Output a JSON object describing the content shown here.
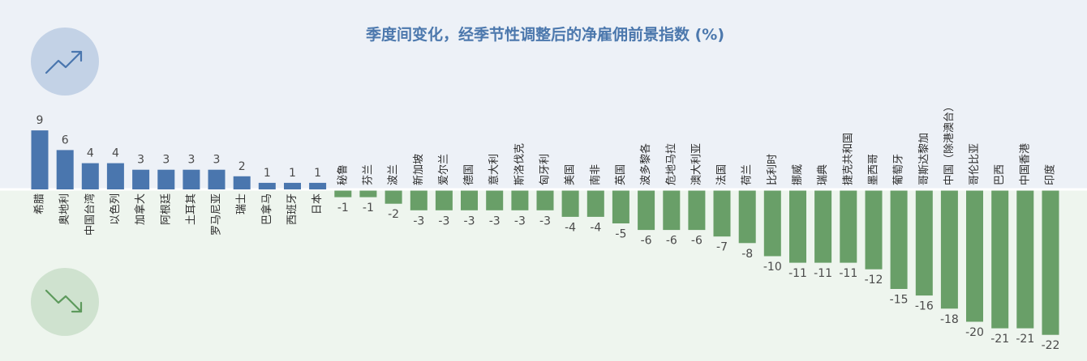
{
  "colors": {
    "positive": "#4a76ae",
    "negative": "#699f68",
    "highlight_label": "#5e9a5d",
    "title": "#4c78ad",
    "bg_top": "#edf1f7",
    "bg_bottom": "#eef5ee",
    "up_circle": "#c3d2e6",
    "down_circle": "#cfe2cf"
  },
  "icons": {
    "up": "trend-up-icon",
    "down": "trend-down-icon"
  },
  "chart_data": {
    "type": "bar",
    "title": "季度间变化，经季节性调整后的净雇佣前景指数 (%)",
    "highlight_category": "中国（除港澳台）",
    "categories": [
      "希腊",
      "奥地利",
      "中国台湾",
      "以色列",
      "加拿大",
      "阿根廷",
      "土耳其",
      "罗马尼亚",
      "瑞士",
      "巴拿马",
      "西班牙",
      "日本",
      "秘鲁",
      "芬兰",
      "波兰",
      "新加坡",
      "爱尔兰",
      "德国",
      "意大利",
      "斯洛伐克",
      "匈牙利",
      "美国",
      "南非",
      "英国",
      "波多黎各",
      "危地马拉",
      "澳大利亚",
      "法国",
      "荷兰",
      "比利时",
      "挪威",
      "瑞典",
      "捷克共和国",
      "墨西哥",
      "葡萄牙",
      "哥斯达黎加",
      "中国（除港澳台）",
      "哥伦比亚",
      "巴西",
      "中国香港",
      "印度"
    ],
    "values": [
      9,
      6,
      4,
      4,
      3,
      3,
      3,
      3,
      2,
      1,
      1,
      1,
      -1,
      -1,
      -2,
      -3,
      -3,
      -3,
      -3,
      -3,
      -3,
      -4,
      -4,
      -5,
      -6,
      -6,
      -6,
      -7,
      -8,
      -10,
      -11,
      -11,
      -11,
      -12,
      -15,
      -16,
      -18,
      -20,
      -21,
      -21,
      -22
    ],
    "ylim": [
      -22,
      9
    ]
  }
}
